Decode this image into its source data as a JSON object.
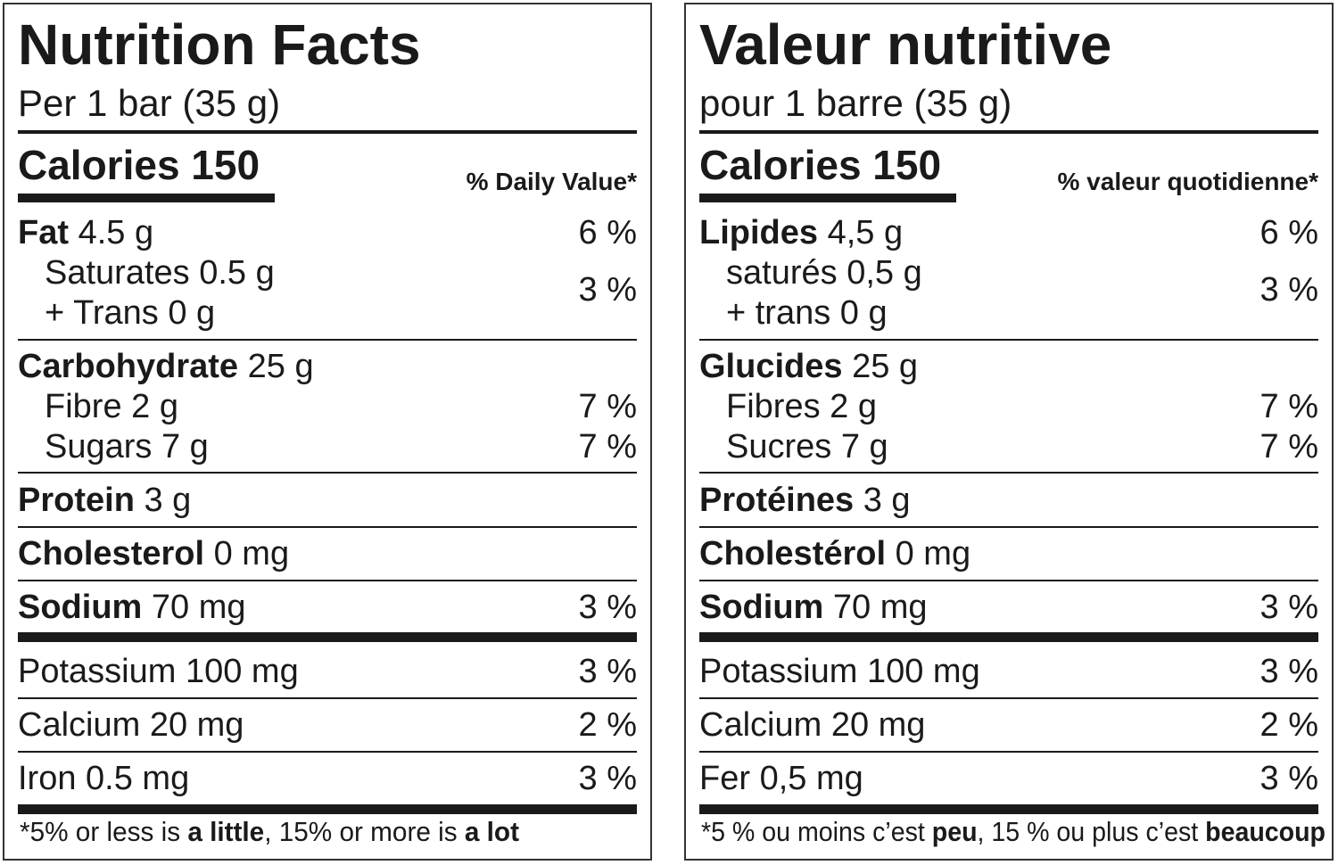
{
  "panels": [
    {
      "language": "en",
      "title": "Nutrition Facts",
      "serving": "Per 1 bar (35 g)",
      "calories": "Calories 150",
      "dv_header": "% Daily Value*",
      "nutrients": [
        {
          "lines": [
            {
              "name": "Fat",
              "amount": "4.5 g",
              "bold": true
            }
          ],
          "dv": "6 %"
        },
        {
          "lines": [
            {
              "name": "Saturates",
              "amount": "0.5 g",
              "indent": true
            },
            {
              "name": "+ Trans",
              "amount": "0 g",
              "indent": true
            }
          ],
          "dv": "3 %"
        },
        {
          "lines": [
            {
              "name": "Carbohydrate",
              "amount": "25 g",
              "bold": true
            }
          ],
          "dv": ""
        },
        {
          "lines": [
            {
              "name": "Fibre",
              "amount": "2 g",
              "indent": true
            }
          ],
          "dv": "7 %"
        },
        {
          "lines": [
            {
              "name": "Sugars",
              "amount": "7 g",
              "indent": true
            }
          ],
          "dv": "7 %"
        },
        {
          "lines": [
            {
              "name": "Protein",
              "amount": "3 g",
              "bold": true
            }
          ],
          "dv": ""
        },
        {
          "lines": [
            {
              "name": "Cholesterol",
              "amount": "0 mg",
              "bold": true
            }
          ],
          "dv": ""
        },
        {
          "lines": [
            {
              "name": "Sodium",
              "amount": "70 mg",
              "bold": true
            }
          ],
          "dv": "3 %"
        },
        {
          "lines": [
            {
              "name": "Potassium",
              "amount": "100 mg"
            }
          ],
          "dv": "3 %"
        },
        {
          "lines": [
            {
              "name": "Calcium",
              "amount": "20 mg"
            }
          ],
          "dv": "2 %"
        },
        {
          "lines": [
            {
              "name": "Iron",
              "amount": "0.5 mg"
            }
          ],
          "dv": "3 %"
        }
      ],
      "footnote": [
        {
          "text": "*5% or less is ",
          "bold": false
        },
        {
          "text": "a little",
          "bold": true
        },
        {
          "text": ", 15% or more is ",
          "bold": false
        },
        {
          "text": "a lot",
          "bold": true
        }
      ]
    },
    {
      "language": "fr",
      "title": "Valeur nutritive",
      "serving": "pour 1 barre (35 g)",
      "calories": "Calories 150",
      "dv_header": "% valeur quotidienne*",
      "nutrients": [
        {
          "lines": [
            {
              "name": "Lipides",
              "amount": "4,5 g",
              "bold": true
            }
          ],
          "dv": "6 %"
        },
        {
          "lines": [
            {
              "name": "saturés",
              "amount": "0,5 g",
              "indent": true
            },
            {
              "name": "+ trans",
              "amount": "0 g",
              "indent": true
            }
          ],
          "dv": "3 %"
        },
        {
          "lines": [
            {
              "name": "Glucides",
              "amount": "25 g",
              "bold": true
            }
          ],
          "dv": ""
        },
        {
          "lines": [
            {
              "name": "Fibres",
              "amount": "2 g",
              "indent": true
            }
          ],
          "dv": "7 %"
        },
        {
          "lines": [
            {
              "name": "Sucres",
              "amount": "7 g",
              "indent": true
            }
          ],
          "dv": "7 %"
        },
        {
          "lines": [
            {
              "name": "Protéines",
              "amount": "3 g",
              "bold": true
            }
          ],
          "dv": ""
        },
        {
          "lines": [
            {
              "name": "Cholestérol",
              "amount": "0 mg",
              "bold": true
            }
          ],
          "dv": ""
        },
        {
          "lines": [
            {
              "name": "Sodium",
              "amount": "70 mg",
              "bold": true
            }
          ],
          "dv": "3 %"
        },
        {
          "lines": [
            {
              "name": "Potassium",
              "amount": "100 mg"
            }
          ],
          "dv": "3 %"
        },
        {
          "lines": [
            {
              "name": "Calcium",
              "amount": "20 mg"
            }
          ],
          "dv": "2 %"
        },
        {
          "lines": [
            {
              "name": "Fer",
              "amount": "0,5 mg"
            }
          ],
          "dv": "3 %"
        }
      ],
      "footnote": [
        {
          "text": "*5 % ou moins c’est ",
          "bold": false
        },
        {
          "text": "peu",
          "bold": true
        },
        {
          "text": ", 15 % ou plus c’est ",
          "bold": false
        },
        {
          "text": "beaucoup",
          "bold": true
        }
      ]
    }
  ]
}
